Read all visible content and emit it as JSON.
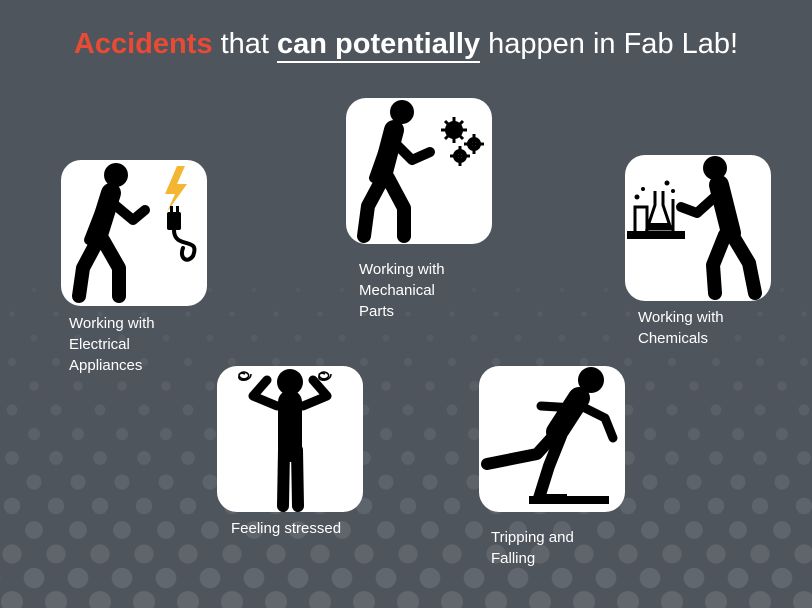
{
  "title": {
    "accent": "Accidents",
    "part1": "that",
    "bold_underlined": "can potentially",
    "part2": "happen in Fab Lab!"
  },
  "colors": {
    "background": "#4f555d",
    "accent": "#e84a34",
    "card": "#ffffff",
    "bolt": "#f2b632"
  },
  "hazards": [
    {
      "icon": "electrical-hazard-icon",
      "label_lines": [
        "Working with",
        "Electrical",
        "Appliances"
      ]
    },
    {
      "icon": "mechanical-hazard-icon",
      "label_lines": [
        "Working with",
        "Mechanical",
        "Parts"
      ]
    },
    {
      "icon": "chemical-hazard-icon",
      "label_lines": [
        "Working with",
        "Chemicals"
      ]
    },
    {
      "icon": "stressed-person-icon",
      "label_lines": [
        "Feeling stressed"
      ]
    },
    {
      "icon": "tripping-person-icon",
      "label_lines": [
        "Tripping and",
        "Falling"
      ]
    }
  ]
}
